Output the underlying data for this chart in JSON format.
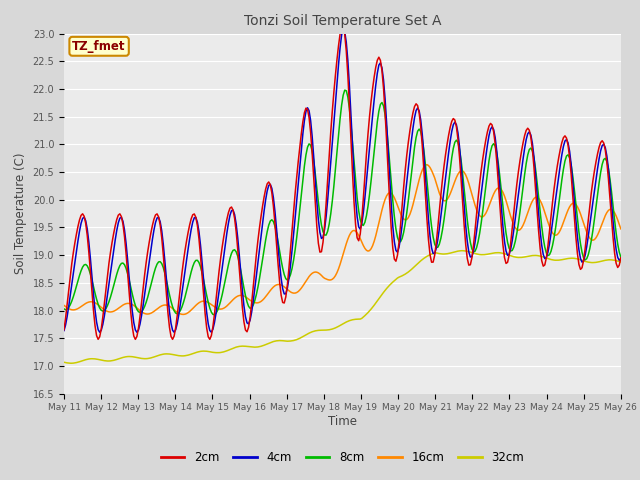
{
  "title": "Tonzi Soil Temperature Set A",
  "xlabel": "Time",
  "ylabel": "Soil Temperature (C)",
  "ylim": [
    16.5,
    23.0
  ],
  "yticks": [
    16.5,
    17.0,
    17.5,
    18.0,
    18.5,
    19.0,
    19.5,
    20.0,
    20.5,
    21.0,
    21.5,
    22.0,
    22.5,
    23.0
  ],
  "xtick_labels": [
    "May 11",
    "May 12",
    "May 13",
    "May 14",
    "May 15",
    "May 16",
    "May 17",
    "May 18",
    "May 19",
    "May 20",
    "May 21",
    "May 22",
    "May 23",
    "May 24",
    "May 25",
    "May 26"
  ],
  "line_colors": [
    "#dd0000",
    "#0000cc",
    "#00bb00",
    "#ff8800",
    "#cccc00"
  ],
  "line_labels": [
    "2cm",
    "4cm",
    "8cm",
    "16cm",
    "32cm"
  ],
  "background_color": "#d8d8d8",
  "plot_bg_color": "#ebebeb",
  "grid_color": "#ffffff",
  "annotation_text": "TZ_fmet",
  "annotation_bg": "#ffffcc",
  "annotation_border": "#cc8800",
  "title_color": "#444444",
  "axis_label_color": "#444444",
  "tick_color": "#555555"
}
